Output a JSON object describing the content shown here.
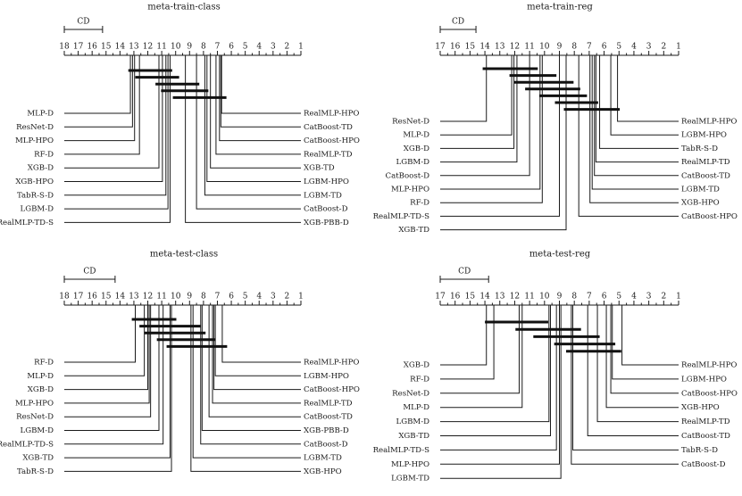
{
  "chart_data": [
    {
      "type": "critical-difference-diagram",
      "title": "meta-train-class",
      "axis_max": 18,
      "axis_min": 1,
      "cd_label": "CD",
      "cd_value": 2.75,
      "left": [
        {
          "name": "MLP-D",
          "rank": 13.25
        },
        {
          "name": "ResNet-D",
          "rank": 13.1
        },
        {
          "name": "MLP-HPO",
          "rank": 12.95
        },
        {
          "name": "RF-D",
          "rank": 12.6
        },
        {
          "name": "XGB-D",
          "rank": 11.2
        },
        {
          "name": "XGB-HPO",
          "rank": 10.95
        },
        {
          "name": "TabR-S-D",
          "rank": 10.7
        },
        {
          "name": "LGBM-D",
          "rank": 10.55
        },
        {
          "name": "RealMLP-TD-S",
          "rank": 10.4
        }
      ],
      "right": [
        {
          "name": "RealMLP-HPO",
          "rank": 6.7
        },
        {
          "name": "CatBoost-TD",
          "rank": 6.75
        },
        {
          "name": "CatBoost-HPO",
          "rank": 6.85
        },
        {
          "name": "RealMLP-TD",
          "rank": 7.1
        },
        {
          "name": "XGB-TD",
          "rank": 7.5
        },
        {
          "name": "LGBM-HPO",
          "rank": 7.75
        },
        {
          "name": "LGBM-TD",
          "rank": 7.9
        },
        {
          "name": "CatBoost-D",
          "rank": 8.5
        },
        {
          "name": "XGB-PBB-D",
          "rank": 9.3
        }
      ],
      "cliques": [
        [
          13.4,
          10.25
        ],
        [
          12.9,
          9.75
        ],
        [
          11.45,
          8.3
        ],
        [
          11.05,
          7.65
        ],
        [
          10.2,
          6.35
        ]
      ]
    },
    {
      "type": "critical-difference-diagram",
      "title": "meta-train-reg",
      "axis_max": 17,
      "axis_min": 1,
      "cd_label": "CD",
      "cd_value": 2.4,
      "left": [
        {
          "name": "ResNet-D",
          "rank": 13.9
        },
        {
          "name": "MLP-D",
          "rank": 12.2
        },
        {
          "name": "XGB-D",
          "rank": 12.05
        },
        {
          "name": "LGBM-D",
          "rank": 11.85
        },
        {
          "name": "CatBoost-D",
          "rank": 11.0
        },
        {
          "name": "MLP-HPO",
          "rank": 10.3
        },
        {
          "name": "RF-D",
          "rank": 10.15
        },
        {
          "name": "RealMLP-TD-S",
          "rank": 9.0
        },
        {
          "name": "XGB-TD",
          "rank": 8.55
        }
      ],
      "right": [
        {
          "name": "RealMLP-HPO",
          "rank": 5.1
        },
        {
          "name": "LGBM-HPO",
          "rank": 5.55
        },
        {
          "name": "TabR-S-D",
          "rank": 6.3
        },
        {
          "name": "RealMLP-TD",
          "rank": 6.55
        },
        {
          "name": "CatBoost-TD",
          "rank": 6.65
        },
        {
          "name": "LGBM-TD",
          "rank": 6.8
        },
        {
          "name": "XGB-HPO",
          "rank": 6.95
        },
        {
          "name": "CatBoost-HPO",
          "rank": 7.7
        }
      ],
      "cliques": [
        [
          14.15,
          10.45
        ],
        [
          12.35,
          9.2
        ],
        [
          12.05,
          8.05
        ],
        [
          11.3,
          7.6
        ],
        [
          10.35,
          7.15
        ],
        [
          9.3,
          6.4
        ],
        [
          8.7,
          4.95
        ]
      ]
    },
    {
      "type": "critical-difference-diagram",
      "title": "meta-test-class",
      "axis_max": 18,
      "axis_min": 1,
      "cd_label": "CD",
      "cd_value": 3.65,
      "left": [
        {
          "name": "RF-D",
          "rank": 12.9
        },
        {
          "name": "MLP-D",
          "rank": 12.25
        },
        {
          "name": "XGB-D",
          "rank": 12.0
        },
        {
          "name": "MLP-HPO",
          "rank": 11.9
        },
        {
          "name": "ResNet-D",
          "rank": 11.8
        },
        {
          "name": "LGBM-D",
          "rank": 11.2
        },
        {
          "name": "RealMLP-TD-S",
          "rank": 10.9
        },
        {
          "name": "XGB-TD",
          "rank": 10.4
        },
        {
          "name": "TabR-S-D",
          "rank": 10.3
        }
      ],
      "right": [
        {
          "name": "RealMLP-HPO",
          "rank": 6.65
        },
        {
          "name": "LGBM-HPO",
          "rank": 7.15
        },
        {
          "name": "CatBoost-HPO",
          "rank": 7.25
        },
        {
          "name": "RealMLP-TD",
          "rank": 7.35
        },
        {
          "name": "CatBoost-TD",
          "rank": 7.6
        },
        {
          "name": "XGB-PBB-D",
          "rank": 8.1
        },
        {
          "name": "CatBoost-D",
          "rank": 8.2
        },
        {
          "name": "LGBM-TD",
          "rank": 8.75
        },
        {
          "name": "XGB-HPO",
          "rank": 8.9
        }
      ],
      "cliques": [
        [
          13.15,
          9.95
        ],
        [
          12.6,
          8.2
        ],
        [
          12.25,
          7.85
        ],
        [
          11.35,
          7.15
        ],
        [
          10.65,
          6.3
        ]
      ]
    },
    {
      "type": "critical-difference-diagram",
      "title": "meta-test-reg",
      "axis_max": 17,
      "axis_min": 1,
      "cd_label": "CD",
      "cd_value": 3.25,
      "left": [
        {
          "name": "XGB-D",
          "rank": 13.9
        },
        {
          "name": "RF-D",
          "rank": 13.4
        },
        {
          "name": "ResNet-D",
          "rank": 11.7
        },
        {
          "name": "MLP-D",
          "rank": 11.5
        },
        {
          "name": "LGBM-D",
          "rank": 9.7
        },
        {
          "name": "XGB-TD",
          "rank": 9.6
        },
        {
          "name": "RealMLP-TD-S",
          "rank": 9.2
        },
        {
          "name": "MLP-HPO",
          "rank": 9.0
        },
        {
          "name": "LGBM-TD",
          "rank": 8.9
        }
      ],
      "right": [
        {
          "name": "RealMLP-HPO",
          "rank": 4.8
        },
        {
          "name": "LGBM-HPO",
          "rank": 5.45
        },
        {
          "name": "CatBoost-HPO",
          "rank": 5.55
        },
        {
          "name": "XGB-HPO",
          "rank": 5.85
        },
        {
          "name": "RealMLP-TD",
          "rank": 6.45
        },
        {
          "name": "CatBoost-TD",
          "rank": 7.1
        },
        {
          "name": "TabR-S-D",
          "rank": 8.1
        },
        {
          "name": "CatBoost-D",
          "rank": 8.2
        }
      ],
      "cliques": [
        [
          14.0,
          9.75
        ],
        [
          11.95,
          7.55
        ],
        [
          10.75,
          6.3
        ],
        [
          9.35,
          5.25
        ],
        [
          8.55,
          4.85
        ]
      ]
    }
  ]
}
